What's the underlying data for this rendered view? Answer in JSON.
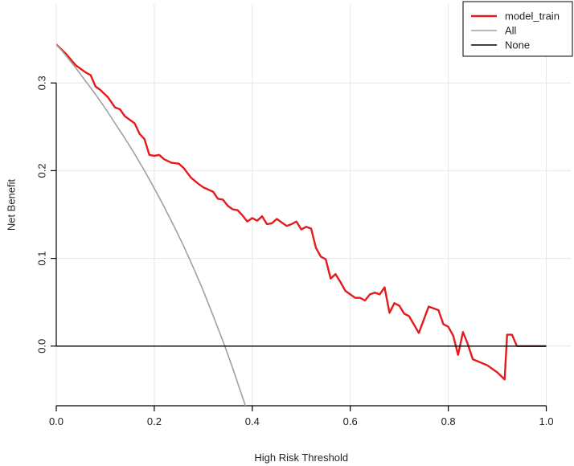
{
  "chart_data": {
    "type": "line",
    "title": "",
    "xlabel": "High Risk Threshold",
    "ylabel": "Net Benefit",
    "xlim": [
      0,
      1.05
    ],
    "ylim": [
      -0.068,
      0.39
    ],
    "x_ticks": [
      0,
      0.2,
      0.4,
      0.6,
      0.8,
      1
    ],
    "x_tick_labels": [
      "0.0",
      "0.2",
      "0.4",
      "0.6",
      "0.8",
      "1.0"
    ],
    "y_ticks": [
      0,
      0.1,
      0.2,
      0.3
    ],
    "y_tick_labels": [
      "0.0",
      "0.1",
      "0.2",
      "0.3"
    ],
    "grid": true,
    "legend_position": "top-right",
    "series": [
      {
        "name": "model_train",
        "color": "#e41a1c",
        "points": [
          [
            0.0,
            0.344
          ],
          [
            0.02,
            0.333
          ],
          [
            0.04,
            0.32
          ],
          [
            0.06,
            0.312
          ],
          [
            0.07,
            0.309
          ],
          [
            0.08,
            0.296
          ],
          [
            0.09,
            0.292
          ],
          [
            0.105,
            0.284
          ],
          [
            0.12,
            0.272
          ],
          [
            0.13,
            0.27
          ],
          [
            0.14,
            0.262
          ],
          [
            0.16,
            0.254
          ],
          [
            0.17,
            0.242
          ],
          [
            0.18,
            0.236
          ],
          [
            0.19,
            0.218
          ],
          [
            0.2,
            0.217
          ],
          [
            0.21,
            0.218
          ],
          [
            0.22,
            0.213
          ],
          [
            0.235,
            0.209
          ],
          [
            0.25,
            0.208
          ],
          [
            0.26,
            0.203
          ],
          [
            0.275,
            0.192
          ],
          [
            0.29,
            0.185
          ],
          [
            0.3,
            0.181
          ],
          [
            0.32,
            0.176
          ],
          [
            0.33,
            0.168
          ],
          [
            0.34,
            0.167
          ],
          [
            0.35,
            0.16
          ],
          [
            0.36,
            0.156
          ],
          [
            0.37,
            0.155
          ],
          [
            0.38,
            0.149
          ],
          [
            0.39,
            0.142
          ],
          [
            0.4,
            0.146
          ],
          [
            0.41,
            0.143
          ],
          [
            0.42,
            0.148
          ],
          [
            0.43,
            0.139
          ],
          [
            0.44,
            0.14
          ],
          [
            0.45,
            0.145
          ],
          [
            0.47,
            0.137
          ],
          [
            0.48,
            0.139
          ],
          [
            0.49,
            0.142
          ],
          [
            0.5,
            0.133
          ],
          [
            0.51,
            0.136
          ],
          [
            0.52,
            0.134
          ],
          [
            0.53,
            0.112
          ],
          [
            0.54,
            0.102
          ],
          [
            0.55,
            0.099
          ],
          [
            0.56,
            0.077
          ],
          [
            0.57,
            0.082
          ],
          [
            0.58,
            0.073
          ],
          [
            0.59,
            0.063
          ],
          [
            0.6,
            0.059
          ],
          [
            0.61,
            0.055
          ],
          [
            0.62,
            0.055
          ],
          [
            0.63,
            0.052
          ],
          [
            0.64,
            0.059
          ],
          [
            0.65,
            0.061
          ],
          [
            0.66,
            0.059
          ],
          [
            0.67,
            0.067
          ],
          [
            0.68,
            0.038
          ],
          [
            0.69,
            0.049
          ],
          [
            0.7,
            0.046
          ],
          [
            0.71,
            0.037
          ],
          [
            0.72,
            0.034
          ],
          [
            0.74,
            0.015
          ],
          [
            0.76,
            0.045
          ],
          [
            0.78,
            0.041
          ],
          [
            0.79,
            0.025
          ],
          [
            0.8,
            0.022
          ],
          [
            0.81,
            0.012
          ],
          [
            0.82,
            -0.01
          ],
          [
            0.83,
            0.016
          ],
          [
            0.84,
            0.002
          ],
          [
            0.85,
            -0.015
          ],
          [
            0.88,
            -0.022
          ],
          [
            0.9,
            -0.03
          ],
          [
            0.915,
            -0.038
          ],
          [
            0.92,
            0.013
          ],
          [
            0.93,
            0.013
          ],
          [
            0.94,
            0.0
          ],
          [
            0.99,
            0.0
          ],
          [
            1.0,
            0.0
          ]
        ]
      },
      {
        "name": "All",
        "color": "#a0a0a0",
        "points": [
          [
            0.0,
            0.344
          ],
          [
            0.02,
            0.331
          ],
          [
            0.04,
            0.317
          ],
          [
            0.06,
            0.302
          ],
          [
            0.08,
            0.287
          ],
          [
            0.1,
            0.271
          ],
          [
            0.12,
            0.254
          ],
          [
            0.14,
            0.237
          ],
          [
            0.16,
            0.219
          ],
          [
            0.18,
            0.2
          ],
          [
            0.2,
            0.18
          ],
          [
            0.22,
            0.159
          ],
          [
            0.24,
            0.137
          ],
          [
            0.26,
            0.114
          ],
          [
            0.28,
            0.089
          ],
          [
            0.3,
            0.063
          ],
          [
            0.32,
            0.035
          ],
          [
            0.344,
            0.0
          ],
          [
            0.36,
            -0.025
          ],
          [
            0.38,
            -0.058
          ],
          [
            0.39,
            -0.075
          ]
        ]
      },
      {
        "name": "None",
        "color": "#000000",
        "points": [
          [
            0.0,
            0.0
          ],
          [
            1.0,
            0.0
          ]
        ]
      }
    ]
  }
}
